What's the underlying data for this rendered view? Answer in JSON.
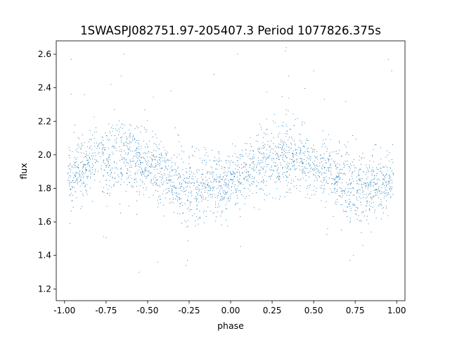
{
  "chart_data": {
    "type": "scatter",
    "title": "1SWASPJ082751.97-205407.3 Period 1077826.375s",
    "xlabel": "phase",
    "ylabel": "flux",
    "xlim": [
      -1.05,
      1.05
    ],
    "ylim": [
      1.13,
      2.68
    ],
    "xticks": [
      "-1.00",
      "-0.75",
      "-0.50",
      "-0.25",
      "0.00",
      "0.25",
      "0.50",
      "0.75",
      "1.00"
    ],
    "yticks": [
      "1.2",
      "1.4",
      "1.6",
      "1.8",
      "2.0",
      "2.2",
      "2.4",
      "2.6"
    ],
    "grid": false,
    "legend": "none",
    "marker_color": "#1f77b4",
    "series": [
      {
        "x": [
          -0.98,
          -0.95,
          -0.9,
          -0.85,
          -0.8,
          -0.75,
          -0.7,
          -0.65,
          -0.6,
          -0.55,
          -0.5,
          -0.45,
          -0.4,
          -0.35,
          -0.3,
          -0.25,
          -0.2,
          -0.15,
          -0.1,
          -0.05,
          0.0,
          0.05,
          0.1,
          0.15,
          0.2,
          0.25,
          0.3,
          0.35,
          0.4,
          0.45,
          0.5,
          0.55,
          0.6,
          0.65,
          0.7,
          0.75,
          0.8,
          0.85,
          0.9,
          0.95,
          0.98
        ],
        "y": [
          1.88,
          1.87,
          1.9,
          1.95,
          1.97,
          1.96,
          1.98,
          2.0,
          1.98,
          1.95,
          1.93,
          1.92,
          1.9,
          1.85,
          1.82,
          1.8,
          1.79,
          1.82,
          1.83,
          1.82,
          1.84,
          1.87,
          1.9,
          1.94,
          1.96,
          1.97,
          1.98,
          2.0,
          1.98,
          1.96,
          1.94,
          1.92,
          1.89,
          1.86,
          1.83,
          1.81,
          1.79,
          1.81,
          1.83,
          1.84,
          1.85
        ],
        "spread": [
          0.1,
          0.12,
          0.11,
          0.12,
          0.13,
          0.14,
          0.15,
          0.16,
          0.14,
          0.12,
          0.11,
          0.12,
          0.12,
          0.13,
          0.14,
          0.15,
          0.14,
          0.13,
          0.12,
          0.11,
          0.1,
          0.11,
          0.12,
          0.13,
          0.14,
          0.15,
          0.15,
          0.15,
          0.14,
          0.13,
          0.12,
          0.12,
          0.12,
          0.13,
          0.14,
          0.15,
          0.14,
          0.13,
          0.12,
          0.11,
          0.1
        ]
      }
    ],
    "notable_points": {
      "x": [
        -0.96,
        -0.88,
        -0.72,
        -0.66,
        -0.64,
        -0.55,
        -0.44,
        -0.36,
        -0.26,
        -0.27,
        -0.1,
        0.04,
        0.33,
        0.35,
        0.5,
        0.72,
        0.74,
        0.95,
        0.97
      ],
      "y": [
        2.57,
        2.36,
        2.42,
        2.47,
        2.6,
        1.3,
        1.36,
        2.38,
        1.37,
        1.34,
        2.48,
        2.6,
        2.62,
        2.47,
        2.5,
        1.37,
        1.4,
        2.57,
        2.5
      ]
    }
  }
}
